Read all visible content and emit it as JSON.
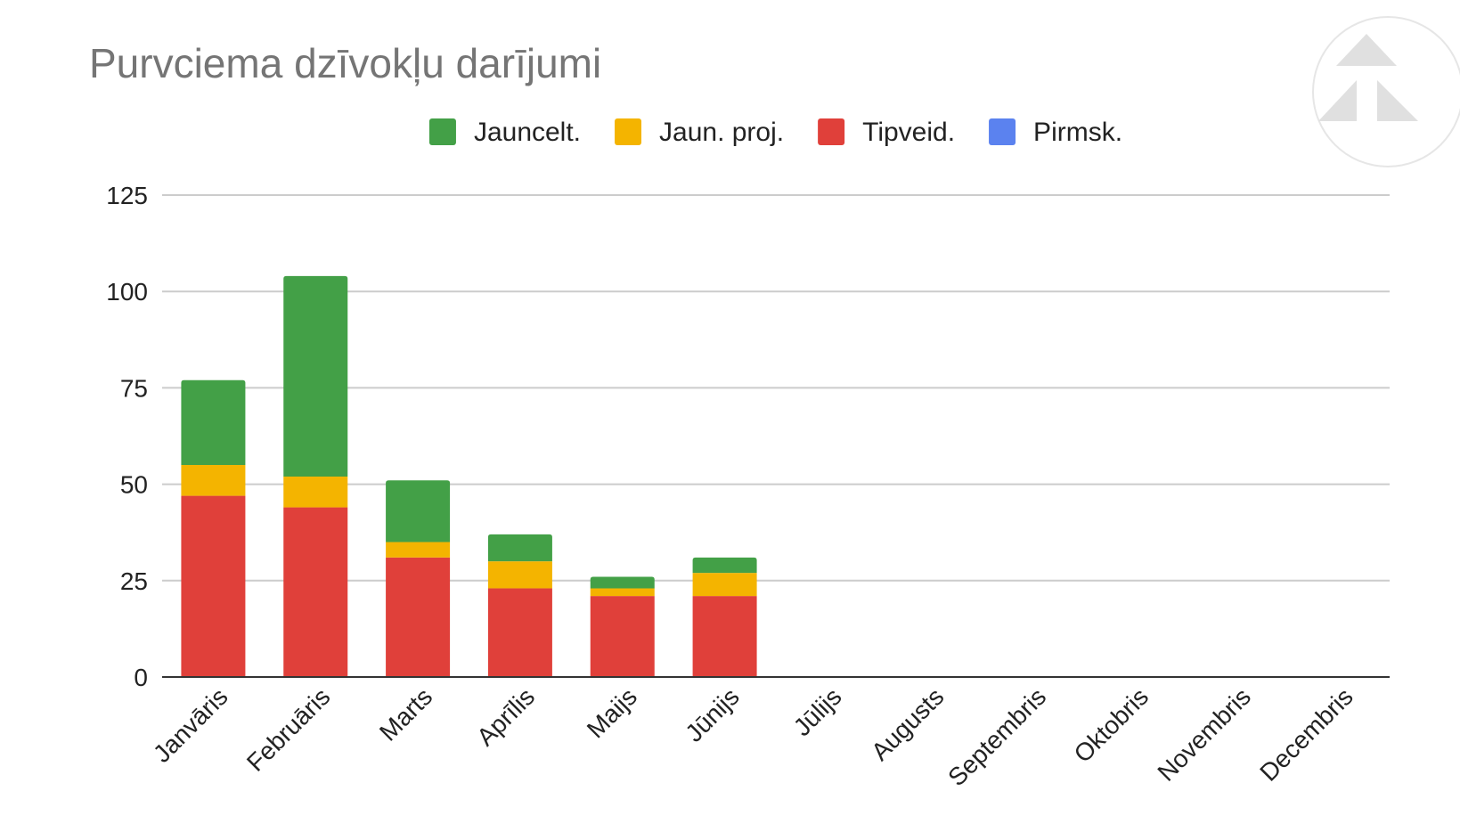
{
  "chart_data": {
    "type": "bar",
    "stacked": true,
    "title": "Purvciema dzīvokļu darījumi",
    "xlabel": "",
    "ylabel": "",
    "ylim": [
      0,
      125
    ],
    "yticks": [
      "0",
      "25",
      "50",
      "75",
      "100",
      "125"
    ],
    "grid": true,
    "legend_position": "top",
    "categories": [
      "Janvāris",
      "Februāris",
      "Marts",
      "Aprīlis",
      "Maijs",
      "Jūnijs",
      "Jūlijs",
      "Augusts",
      "Septembris",
      "Oktobris",
      "Novembris",
      "Decembris"
    ],
    "series": [
      {
        "name": "Jauncelt.",
        "color": "#43a047",
        "values": [
          22,
          52,
          16,
          7,
          3,
          4,
          0,
          0,
          0,
          0,
          0,
          0
        ]
      },
      {
        "name": "Jaun. proj.",
        "color": "#f4b400",
        "values": [
          8,
          8,
          4,
          7,
          2,
          6,
          0,
          0,
          0,
          0,
          0,
          0
        ]
      },
      {
        "name": "Tipveid.",
        "color": "#e0403a",
        "values": [
          47,
          44,
          31,
          23,
          21,
          21,
          0,
          0,
          0,
          0,
          0,
          0
        ]
      },
      {
        "name": "Pirmsk.",
        "color": "#5b82ef",
        "values": [
          0,
          0,
          0,
          0,
          0,
          0,
          0,
          0,
          0,
          0,
          0,
          0
        ]
      }
    ]
  },
  "logo": {
    "icon": "triangle-logo-icon"
  }
}
